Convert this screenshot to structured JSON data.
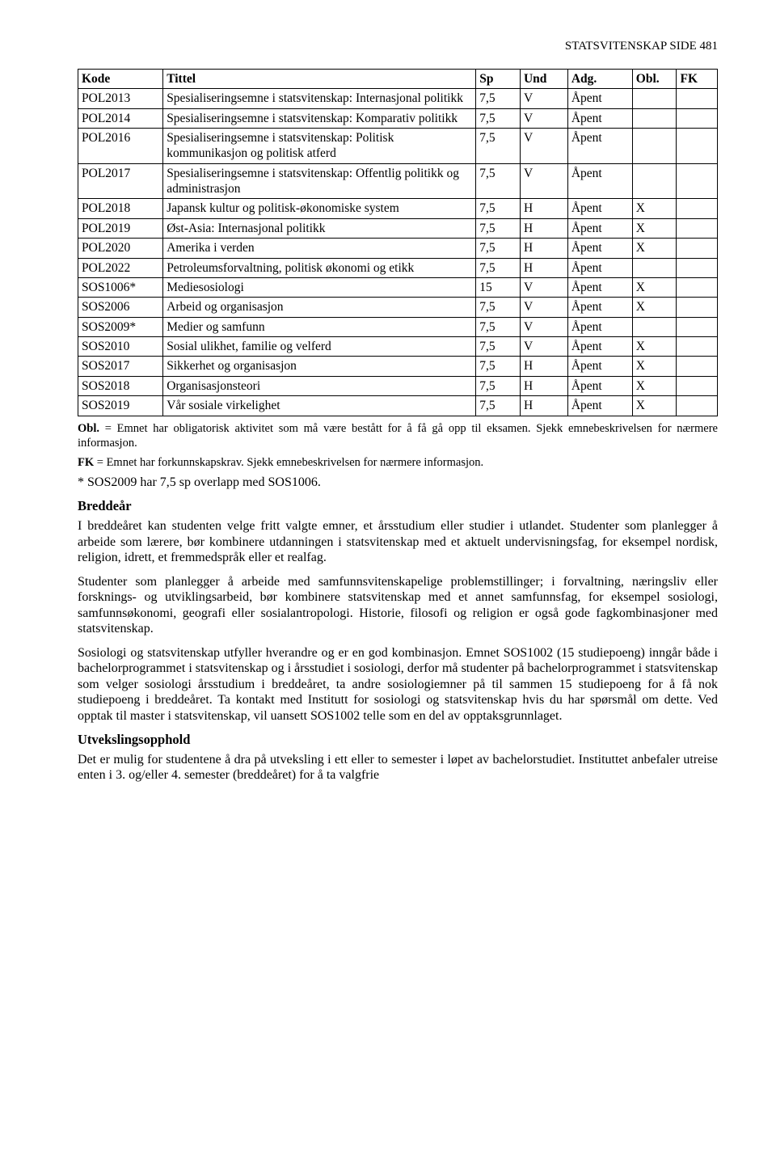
{
  "header": {
    "text": "STATSVITENSKAP   SIDE 481"
  },
  "table": {
    "columns": [
      "Kode",
      "Tittel",
      "Sp",
      "Und",
      "Adg.",
      "Obl.",
      "FK"
    ],
    "rows": [
      [
        "POL2013",
        "Spesialiseringsemne i statsvitenskap: Internasjonal politikk",
        "7,5",
        "V",
        "Åpent",
        "",
        ""
      ],
      [
        "POL2014",
        "Spesialiseringsemne i statsvitenskap: Komparativ politikk",
        "7,5",
        "V",
        "Åpent",
        "",
        ""
      ],
      [
        "POL2016",
        "Spesialiseringsemne i statsvitenskap: Politisk kommunikasjon og politisk atferd",
        "7,5",
        "V",
        "Åpent",
        "",
        ""
      ],
      [
        "POL2017",
        "Spesialiseringsemne i statsvitenskap: Offentlig politikk og administrasjon",
        "7,5",
        "V",
        "Åpent",
        "",
        ""
      ],
      [
        "POL2018",
        "Japansk kultur og politisk-økonomiske system",
        "7,5",
        "H",
        "Åpent",
        "X",
        ""
      ],
      [
        "POL2019",
        "Øst-Asia: Internasjonal politikk",
        "7,5",
        "H",
        "Åpent",
        "X",
        ""
      ],
      [
        "POL2020",
        "Amerika i verden",
        "7,5",
        "H",
        "Åpent",
        "X",
        ""
      ],
      [
        "POL2022",
        "Petroleumsforvaltning, politisk økonomi og etikk",
        "7,5",
        "H",
        "Åpent",
        "",
        ""
      ],
      [
        "SOS1006*",
        "Mediesosiologi",
        "15",
        "V",
        "Åpent",
        "X",
        ""
      ],
      [
        "SOS2006",
        "Arbeid og organisasjon",
        "7,5",
        "V",
        "Åpent",
        "X",
        ""
      ],
      [
        "SOS2009*",
        "Medier og samfunn",
        "7,5",
        "V",
        "Åpent",
        "",
        ""
      ],
      [
        "SOS2010",
        "Sosial ulikhet, familie og velferd",
        "7,5",
        "V",
        "Åpent",
        "X",
        ""
      ],
      [
        "SOS2017",
        "Sikkerhet og organisasjon",
        "7,5",
        "H",
        "Åpent",
        "X",
        ""
      ],
      [
        "SOS2018",
        "Organisasjonsteori",
        "7,5",
        "H",
        "Åpent",
        "X",
        ""
      ],
      [
        "SOS2019",
        "Vår sosiale virkelighet",
        "7,5",
        "H",
        "Åpent",
        "X",
        ""
      ]
    ]
  },
  "notes": {
    "obl_label": "Obl.",
    "obl_text": " = Emnet har obligatorisk aktivitet som må være bestått for å få gå opp til eksamen. Sjekk emnebeskrivelsen for nærmere informasjon.",
    "fk_label": "FK",
    "fk_text": " = Emnet har forkunnskapskrav. Sjekk emnebeskrivelsen for nærmere informasjon.",
    "overlap": "* SOS2009 har 7,5 sp overlapp med SOS1006."
  },
  "sections": {
    "breddear": {
      "title": "Breddeår",
      "p1": "I breddeåret kan studenten velge fritt valgte emner, et årsstudium eller studier i utlandet. Studenter som planlegger å arbeide som lærere, bør kombinere utdanningen i statsvitenskap med et aktuelt undervisningsfag, for eksempel nordisk, religion, idrett, et fremmedspråk eller et realfag.",
      "p2": "Studenter som planlegger å arbeide med samfunnsvitenskapelige problemstillinger; i forvaltning, næringsliv eller forsknings- og utviklingsarbeid, bør kombinere statsvitenskap med et annet samfunnsfag, for eksempel sosiologi, samfunnsøkonomi, geografi eller sosialantropologi. Historie, filosofi og religion er også gode fagkombinasjoner med statsvitenskap.",
      "p3": "Sosiologi og statsvitenskap utfyller hverandre og er en god kombinasjon. Emnet SOS1002 (15 studiepoeng) inngår både i bachelorprogrammet i statsvitenskap og i årsstudiet i sosiologi, derfor må studenter på bachelorprogrammet i statsvitenskap som velger sosiologi årsstudium i breddeåret, ta andre sosiologiemner på til sammen 15 studiepoeng for å få nok studiepoeng i breddeåret. Ta kontakt med Institutt for sosiologi og statsvitenskap hvis du har spørsmål om dette. Ved opptak til master i statsvitenskap, vil uansett SOS1002 telle som en del av opptaksgrunnlaget."
    },
    "utveksling": {
      "title": "Utvekslingsopphold",
      "p1": "Det er mulig for studentene å dra på utveksling i ett eller to semester i løpet av bachelorstudiet. Instituttet anbefaler utreise enten i 3. og/eller 4. semester (breddeåret) for å ta valgfrie"
    }
  }
}
